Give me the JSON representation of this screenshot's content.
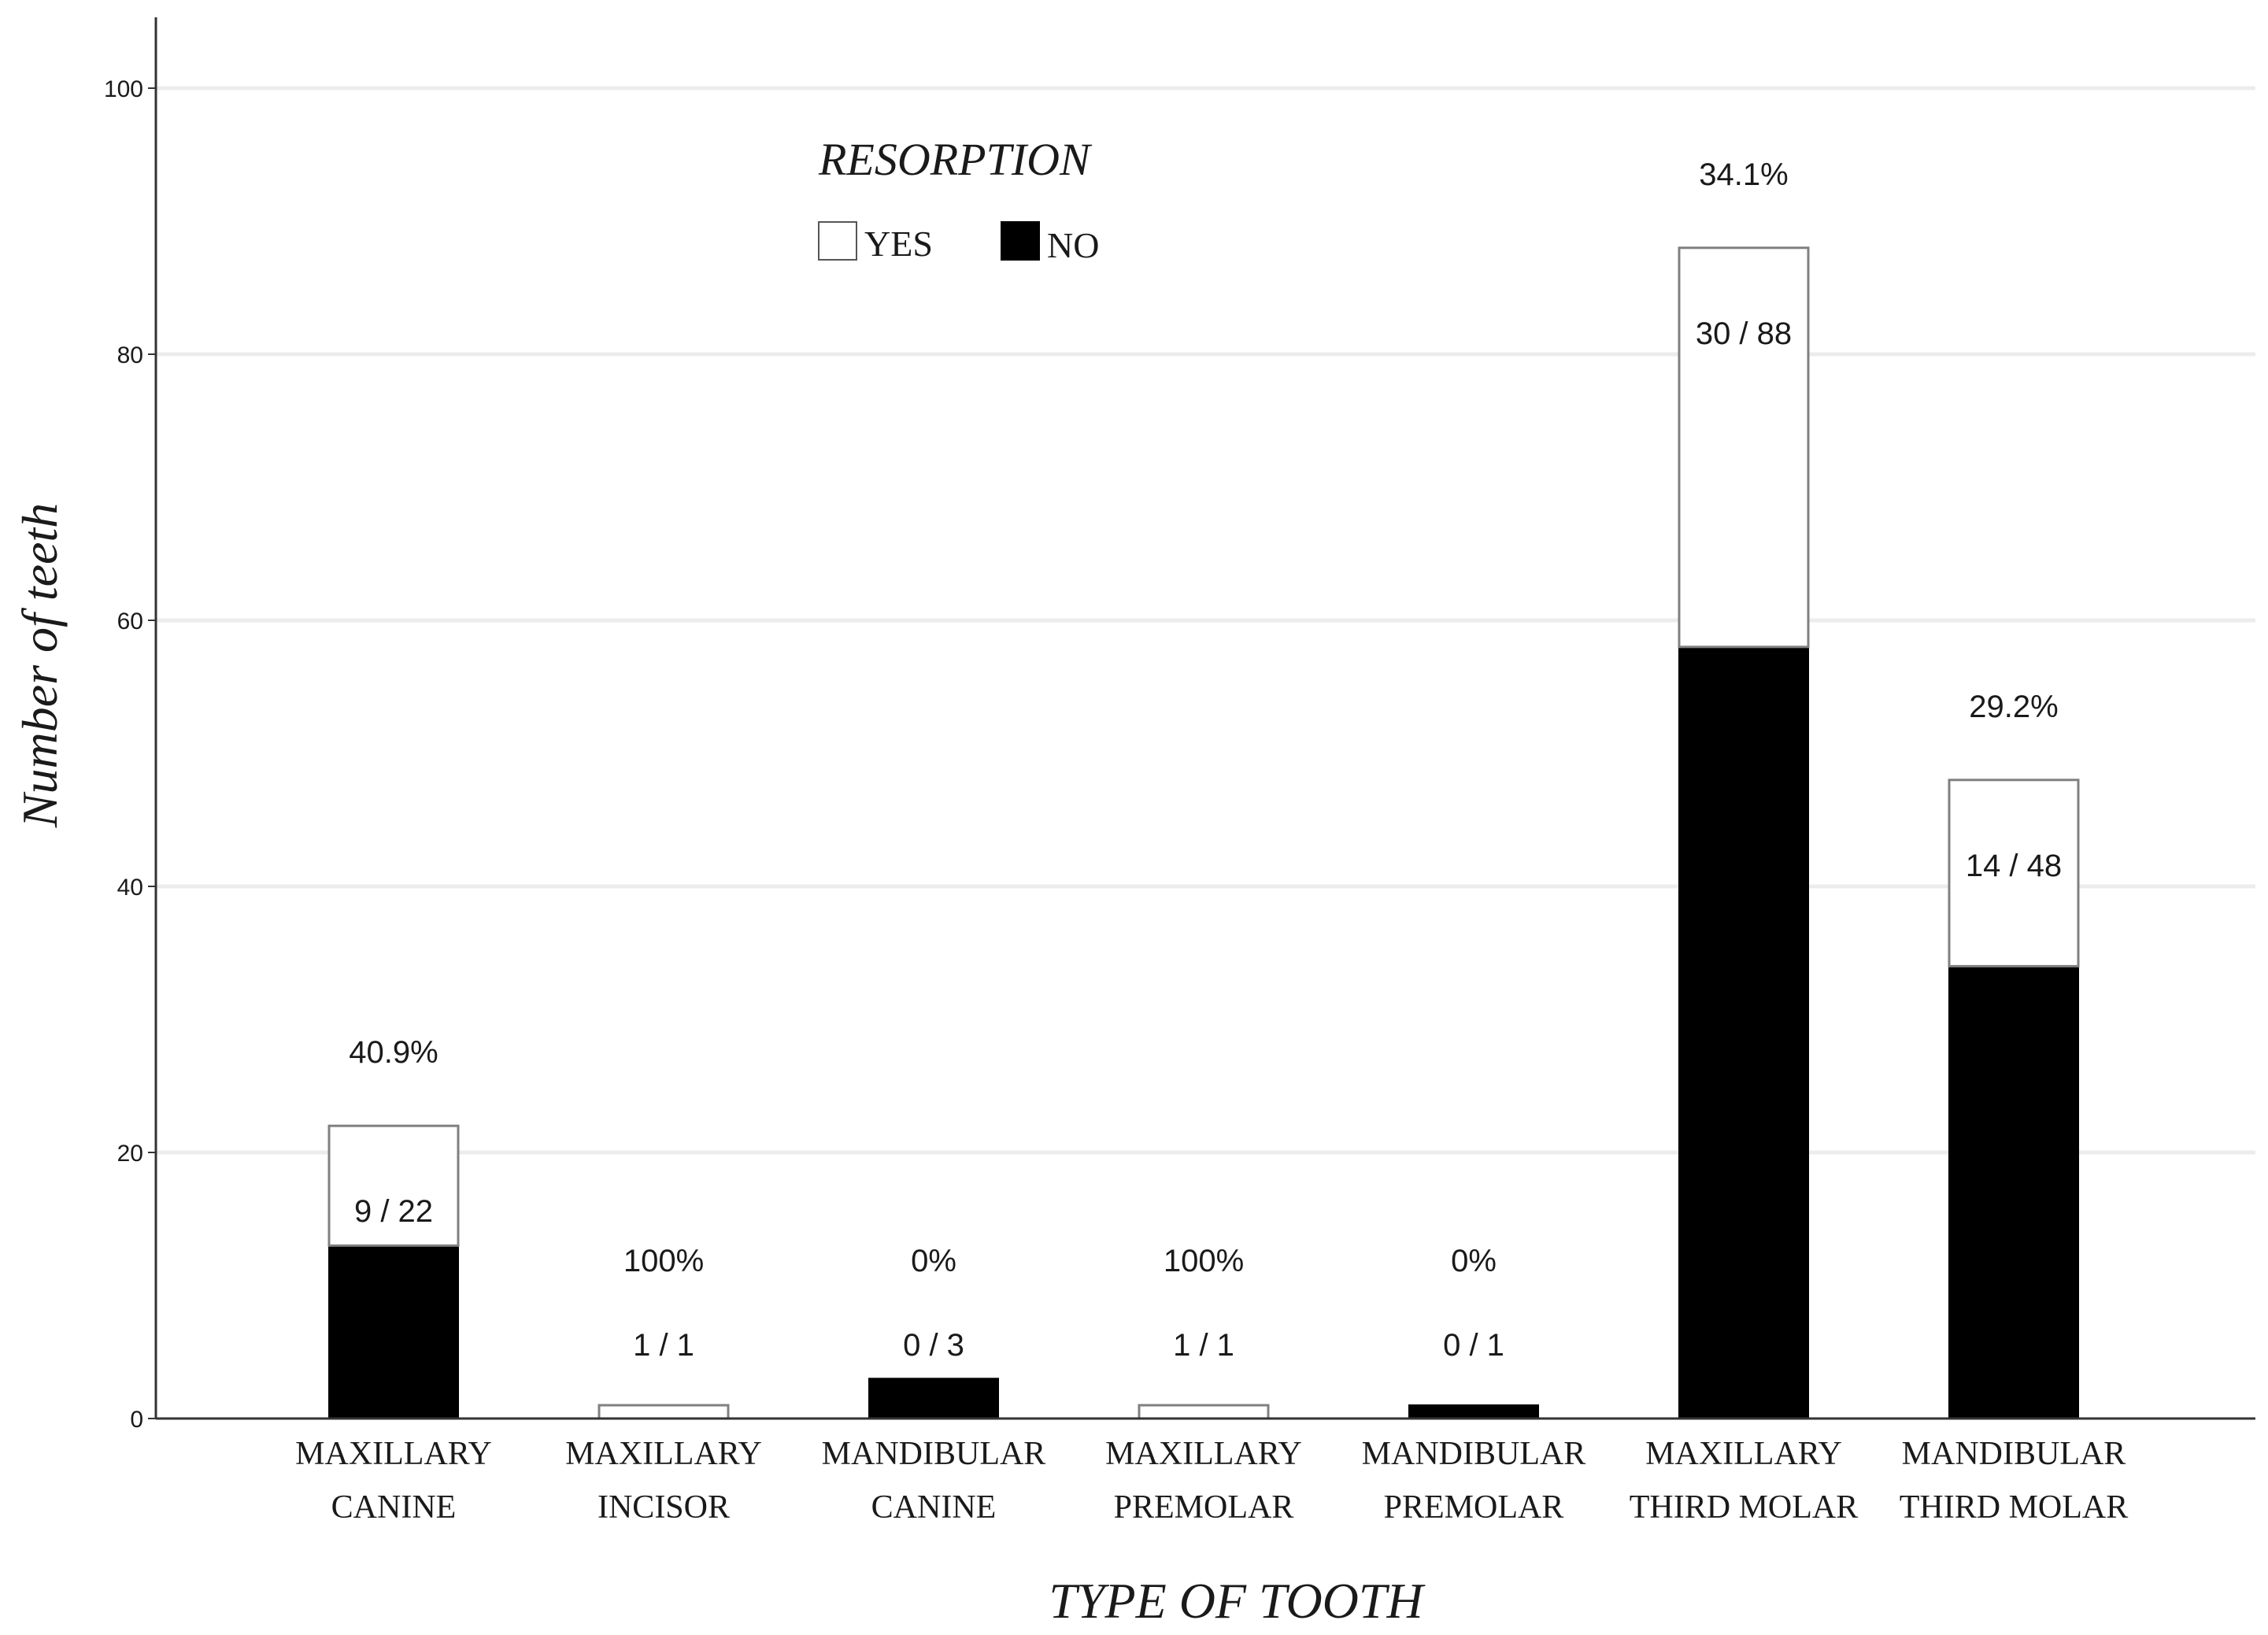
{
  "chart_data": {
    "type": "bar",
    "stacked": true,
    "title": "",
    "xlabel": "TYPE OF TOOTH",
    "ylabel": "Number of teeth",
    "ylim": [
      0,
      105
    ],
    "yticks": [
      0,
      20,
      40,
      60,
      80,
      100
    ],
    "grid": "horizontal",
    "legend": {
      "title": "RESORPTION",
      "placement": "top-left",
      "items": [
        {
          "label": "YES",
          "color": "#ffffff"
        },
        {
          "label": "NO",
          "color": "#000000"
        }
      ]
    },
    "categories": [
      [
        "MAXILLARY",
        "CANINE"
      ],
      [
        "MAXILLARY",
        "INCISOR"
      ],
      [
        "MANDIBULAR",
        "CANINE"
      ],
      [
        "MAXILLARY",
        "PREMOLAR"
      ],
      [
        "MANDIBULAR",
        "PREMOLAR"
      ],
      [
        "MAXILLARY",
        "THIRD MOLAR"
      ],
      [
        "MANDIBULAR",
        "THIRD MOLAR"
      ]
    ],
    "series": [
      {
        "name": "NO",
        "color": "#000000",
        "values": [
          13,
          0,
          3,
          0,
          1,
          58,
          34
        ]
      },
      {
        "name": "YES",
        "color": "#ffffff",
        "values": [
          9,
          1,
          0,
          1,
          0,
          30,
          14
        ]
      }
    ],
    "percent_labels": [
      "40.9%",
      "100%",
      "0%",
      "100%",
      "0%",
      "34.1%",
      "29.2%"
    ],
    "fraction_labels": [
      "9 / 22",
      "1 / 1",
      "0 / 3",
      "1 / 1",
      "0 / 1",
      "30 / 88",
      "14 / 48"
    ]
  }
}
